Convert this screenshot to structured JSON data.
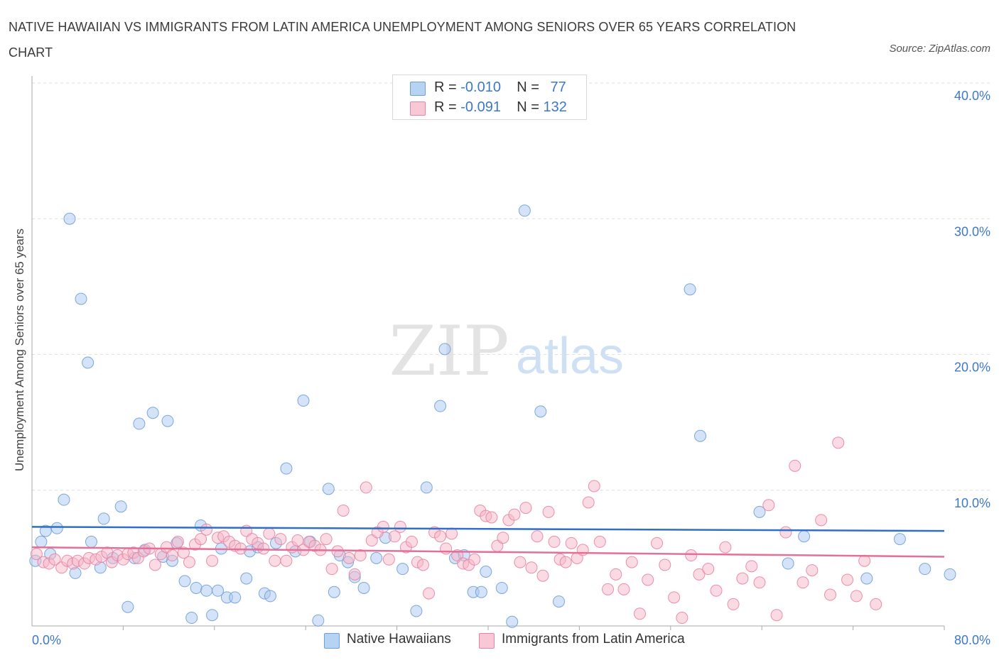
{
  "title": "NATIVE HAWAIIAN VS IMMIGRANTS FROM LATIN AMERICA UNEMPLOYMENT AMONG SENIORS OVER 65 YEARS CORRELATION CHART",
  "source": "Source: ZipAtlas.com",
  "watermark": {
    "zip": "ZIP",
    "atlas": "atlas"
  },
  "legend": {
    "rows": [
      {
        "r_label": "R =",
        "r_value": "-0.010",
        "n_label": "N =",
        "n_value": "77"
      },
      {
        "r_label": "R =",
        "r_value": "-0.091",
        "n_label": "N =",
        "n_value": "132"
      }
    ]
  },
  "chart_data": {
    "type": "scatter",
    "title": "NATIVE HAWAIIAN VS IMMIGRANTS FROM LATIN AMERICA UNEMPLOYMENT AMONG SENIORS OVER 65 YEARS CORRELATION CHART",
    "xlabel": "",
    "ylabel": "Unemployment Among Seniors over 65 years",
    "xlim": [
      0,
      80
    ],
    "ylim": [
      0,
      40
    ],
    "x_tick_labels": [
      "0.0%",
      "80.0%"
    ],
    "y_ticks": [
      10,
      20,
      30,
      40
    ],
    "y_tick_labels": [
      "10.0%",
      "20.0%",
      "30.0%",
      "40.0%"
    ],
    "grid": "horizontal dashed",
    "legend_placement": "top-center and bottom",
    "series": [
      {
        "name": "Native Hawaiians",
        "color": "#a9c8ef",
        "stroke": "#6f9fd8",
        "trend_color": "#2f6fc7",
        "trend": {
          "x": [
            0,
            80
          ],
          "y": [
            7.3,
            7.0
          ]
        },
        "points": [
          [
            0.3,
            4.8
          ],
          [
            0.8,
            6.2
          ],
          [
            1.2,
            7.0
          ],
          [
            1.6,
            5.3
          ],
          [
            2.2,
            7.2
          ],
          [
            2.8,
            9.3
          ],
          [
            3.3,
            30.0
          ],
          [
            3.8,
            3.9
          ],
          [
            4.3,
            24.1
          ],
          [
            4.9,
            19.4
          ],
          [
            5.2,
            6.2
          ],
          [
            6.0,
            4.3
          ],
          [
            6.3,
            7.9
          ],
          [
            7.1,
            5.0
          ],
          [
            7.8,
            8.8
          ],
          [
            8.4,
            1.4
          ],
          [
            9.0,
            5.0
          ],
          [
            9.4,
            14.9
          ],
          [
            9.9,
            5.6
          ],
          [
            10.6,
            15.7
          ],
          [
            11.5,
            5.1
          ],
          [
            11.9,
            15.1
          ],
          [
            12.3,
            4.8
          ],
          [
            12.7,
            6.1
          ],
          [
            13.4,
            3.3
          ],
          [
            14.0,
            0.6
          ],
          [
            14.4,
            2.8
          ],
          [
            14.8,
            7.4
          ],
          [
            15.3,
            2.6
          ],
          [
            15.8,
            0.8
          ],
          [
            16.3,
            2.6
          ],
          [
            16.6,
            5.7
          ],
          [
            17.1,
            2.1
          ],
          [
            17.8,
            2.1
          ],
          [
            18.8,
            3.5
          ],
          [
            19.1,
            5.5
          ],
          [
            19.8,
            5.8
          ],
          [
            20.4,
            2.4
          ],
          [
            20.9,
            2.2
          ],
          [
            21.4,
            6.1
          ],
          [
            22.3,
            11.6
          ],
          [
            23.1,
            5.5
          ],
          [
            23.8,
            16.6
          ],
          [
            24.4,
            6.2
          ],
          [
            25.1,
            0.4
          ],
          [
            26.0,
            10.1
          ],
          [
            26.5,
            2.5
          ],
          [
            27.0,
            5.2
          ],
          [
            27.7,
            4.7
          ],
          [
            28.3,
            3.6
          ],
          [
            29.1,
            2.8
          ],
          [
            30.2,
            5.0
          ],
          [
            31.0,
            6.5
          ],
          [
            32.5,
            4.2
          ],
          [
            33.7,
            1.1
          ],
          [
            34.6,
            10.2
          ],
          [
            35.8,
            16.2
          ],
          [
            36.2,
            20.4
          ],
          [
            37.1,
            5.0
          ],
          [
            37.9,
            5.2
          ],
          [
            38.7,
            2.5
          ],
          [
            39.4,
            2.5
          ],
          [
            39.8,
            4.0
          ],
          [
            41.2,
            2.8
          ],
          [
            42.1,
            0.3
          ],
          [
            43.2,
            30.6
          ],
          [
            44.6,
            15.8
          ],
          [
            46.2,
            1.8
          ],
          [
            57.7,
            24.8
          ],
          [
            58.6,
            14.0
          ],
          [
            63.8,
            8.4
          ],
          [
            66.3,
            4.6
          ],
          [
            67.7,
            6.6
          ],
          [
            73.2,
            3.5
          ],
          [
            76.1,
            6.4
          ],
          [
            78.3,
            4.2
          ],
          [
            80.5,
            3.8
          ]
        ]
      },
      {
        "name": "Immigrants from Latin America",
        "color": "#f6b6c8",
        "stroke": "#e883a3",
        "trend_color": "#e46f98",
        "trend": {
          "x": [
            0,
            80
          ],
          "y": [
            5.8,
            5.1
          ]
        },
        "points": [
          [
            0.4,
            5.3
          ],
          [
            1.0,
            4.7
          ],
          [
            1.5,
            4.6
          ],
          [
            2.0,
            4.9
          ],
          [
            2.6,
            4.3
          ],
          [
            3.1,
            4.8
          ],
          [
            3.6,
            4.6
          ],
          [
            4.0,
            4.8
          ],
          [
            4.6,
            4.6
          ],
          [
            5.0,
            5.0
          ],
          [
            5.6,
            4.9
          ],
          [
            6.1,
            5.1
          ],
          [
            6.6,
            5.4
          ],
          [
            7.0,
            4.7
          ],
          [
            7.5,
            5.2
          ],
          [
            8.0,
            4.9
          ],
          [
            8.4,
            5.3
          ],
          [
            8.9,
            5.4
          ],
          [
            9.3,
            5.0
          ],
          [
            9.8,
            5.5
          ],
          [
            10.3,
            5.7
          ],
          [
            10.8,
            4.5
          ],
          [
            11.3,
            5.3
          ],
          [
            11.8,
            5.8
          ],
          [
            12.3,
            5.2
          ],
          [
            12.8,
            6.2
          ],
          [
            13.3,
            5.4
          ],
          [
            13.8,
            4.7
          ],
          [
            14.3,
            6.0
          ],
          [
            14.8,
            6.4
          ],
          [
            15.3,
            7.1
          ],
          [
            15.8,
            4.8
          ],
          [
            16.3,
            6.5
          ],
          [
            16.8,
            6.6
          ],
          [
            17.3,
            6.2
          ],
          [
            17.8,
            5.9
          ],
          [
            18.3,
            5.7
          ],
          [
            18.8,
            7.0
          ],
          [
            19.3,
            6.4
          ],
          [
            19.8,
            6.1
          ],
          [
            20.3,
            5.7
          ],
          [
            20.8,
            6.8
          ],
          [
            21.3,
            4.8
          ],
          [
            21.8,
            6.4
          ],
          [
            22.3,
            4.8
          ],
          [
            22.8,
            5.8
          ],
          [
            23.3,
            6.3
          ],
          [
            23.8,
            5.6
          ],
          [
            24.3,
            6.2
          ],
          [
            24.8,
            5.9
          ],
          [
            25.3,
            5.6
          ],
          [
            25.8,
            6.4
          ],
          [
            26.3,
            4.2
          ],
          [
            26.8,
            5.5
          ],
          [
            27.3,
            8.5
          ],
          [
            27.8,
            5.0
          ],
          [
            28.3,
            3.8
          ],
          [
            28.8,
            5.2
          ],
          [
            29.3,
            10.2
          ],
          [
            29.8,
            6.3
          ],
          [
            30.3,
            6.9
          ],
          [
            30.8,
            7.3
          ],
          [
            31.3,
            4.9
          ],
          [
            31.8,
            6.6
          ],
          [
            32.3,
            7.3
          ],
          [
            32.8,
            5.8
          ],
          [
            33.3,
            6.2
          ],
          [
            33.8,
            4.7
          ],
          [
            34.3,
            4.5
          ],
          [
            34.8,
            2.4
          ],
          [
            35.3,
            6.9
          ],
          [
            35.8,
            6.6
          ],
          [
            36.3,
            5.7
          ],
          [
            36.8,
            6.8
          ],
          [
            37.3,
            5.2
          ],
          [
            37.8,
            4.6
          ],
          [
            38.3,
            4.5
          ],
          [
            38.8,
            4.9
          ],
          [
            39.3,
            8.5
          ],
          [
            39.8,
            8.1
          ],
          [
            40.3,
            8.0
          ],
          [
            40.8,
            5.9
          ],
          [
            41.3,
            6.5
          ],
          [
            41.8,
            7.8
          ],
          [
            42.3,
            8.2
          ],
          [
            42.8,
            4.7
          ],
          [
            43.3,
            8.7
          ],
          [
            43.8,
            4.3
          ],
          [
            44.3,
            6.6
          ],
          [
            44.8,
            3.7
          ],
          [
            45.3,
            8.4
          ],
          [
            45.8,
            6.2
          ],
          [
            46.3,
            4.9
          ],
          [
            46.8,
            4.7
          ],
          [
            47.3,
            6.1
          ],
          [
            47.8,
            5.0
          ],
          [
            48.3,
            5.6
          ],
          [
            48.8,
            9.1
          ],
          [
            49.3,
            10.3
          ],
          [
            49.8,
            6.2
          ],
          [
            50.5,
            2.7
          ],
          [
            51.2,
            3.8
          ],
          [
            51.9,
            2.7
          ],
          [
            52.6,
            4.7
          ],
          [
            53.3,
            0.9
          ],
          [
            54.0,
            3.4
          ],
          [
            54.8,
            6.1
          ],
          [
            55.5,
            4.5
          ],
          [
            56.3,
            2.1
          ],
          [
            57.0,
            0.6
          ],
          [
            57.8,
            5.2
          ],
          [
            58.5,
            3.8
          ],
          [
            59.3,
            4.2
          ],
          [
            60.0,
            2.6
          ],
          [
            60.8,
            5.8
          ],
          [
            61.5,
            1.6
          ],
          [
            62.3,
            3.5
          ],
          [
            63.1,
            4.4
          ],
          [
            63.8,
            3.2
          ],
          [
            64.6,
            8.9
          ],
          [
            65.3,
            0.8
          ],
          [
            66.1,
            6.9
          ],
          [
            66.9,
            11.8
          ],
          [
            67.6,
            3.2
          ],
          [
            68.4,
            4.1
          ],
          [
            69.2,
            7.8
          ],
          [
            70.0,
            2.3
          ],
          [
            70.7,
            13.5
          ],
          [
            71.5,
            3.4
          ],
          [
            72.3,
            2.2
          ],
          [
            73.0,
            4.8
          ],
          [
            74.0,
            1.6
          ]
        ]
      }
    ]
  }
}
